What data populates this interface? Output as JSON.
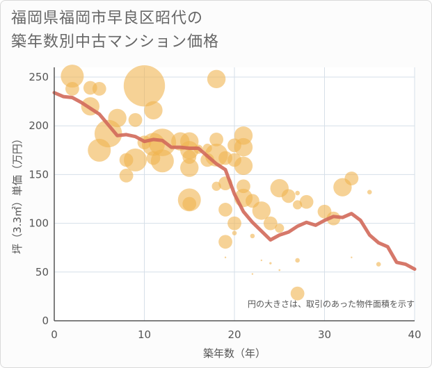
{
  "title_line1": "福岡県福岡市早良区昭代の",
  "title_line2": "築年数別中古マンション価格",
  "chart_data": {
    "type": "scatter",
    "title": "福岡県福岡市早良区昭代の築年数別中古マンション価格",
    "xlabel": "築年数（年）",
    "ylabel": "坪（3.3㎡）単価（万円）",
    "xlim": [
      0,
      40
    ],
    "ylim": [
      0,
      260
    ],
    "xticks": [
      0,
      10,
      20,
      30,
      40
    ],
    "yticks": [
      0,
      50,
      100,
      150,
      200,
      250
    ],
    "grid": true,
    "note": "円の大きさは、取引のあった物件面積を示す",
    "colors": {
      "bubble": "#f0b450",
      "line": "#d2695a"
    },
    "series": [
      {
        "type": "bubble",
        "points": [
          {
            "x": 2,
            "y": 251,
            "s": 5
          },
          {
            "x": 2,
            "y": 238,
            "s": 3
          },
          {
            "x": 4,
            "y": 239,
            "s": 3
          },
          {
            "x": 5,
            "y": 238,
            "s": 3
          },
          {
            "x": 4,
            "y": 220,
            "s": 4
          },
          {
            "x": 7,
            "y": 208,
            "s": 4
          },
          {
            "x": 9,
            "y": 206,
            "s": 3
          },
          {
            "x": 10,
            "y": 241,
            "s": 9
          },
          {
            "x": 11,
            "y": 216,
            "s": 4
          },
          {
            "x": 6,
            "y": 192,
            "s": 6
          },
          {
            "x": 5,
            "y": 175,
            "s": 5
          },
          {
            "x": 8,
            "y": 165,
            "s": 3
          },
          {
            "x": 8,
            "y": 149,
            "s": 3
          },
          {
            "x": 9,
            "y": 165,
            "s": 5
          },
          {
            "x": 10,
            "y": 183,
            "s": 3
          },
          {
            "x": 11,
            "y": 181,
            "s": 5
          },
          {
            "x": 12,
            "y": 183,
            "s": 6
          },
          {
            "x": 11,
            "y": 167,
            "s": 3
          },
          {
            "x": 12,
            "y": 164,
            "s": 5
          },
          {
            "x": 14,
            "y": 184,
            "s": 4
          },
          {
            "x": 15,
            "y": 184,
            "s": 4
          },
          {
            "x": 15,
            "y": 175,
            "s": 4
          },
          {
            "x": 15,
            "y": 168,
            "s": 3
          },
          {
            "x": 16,
            "y": 176,
            "s": 2
          },
          {
            "x": 17,
            "y": 177,
            "s": 2
          },
          {
            "x": 18,
            "y": 186,
            "s": 3
          },
          {
            "x": 18,
            "y": 248,
            "s": 4
          },
          {
            "x": 15,
            "y": 157,
            "s": 4
          },
          {
            "x": 15,
            "y": 124,
            "s": 5
          },
          {
            "x": 15,
            "y": 120,
            "s": 3
          },
          {
            "x": 17,
            "y": 165,
            "s": 3
          },
          {
            "x": 18,
            "y": 170,
            "s": 5
          },
          {
            "x": 19,
            "y": 167,
            "s": 3
          },
          {
            "x": 20,
            "y": 180,
            "s": 3
          },
          {
            "x": 20,
            "y": 165,
            "s": 3
          },
          {
            "x": 21,
            "y": 190,
            "s": 4
          },
          {
            "x": 21,
            "y": 178,
            "s": 4
          },
          {
            "x": 21,
            "y": 159,
            "s": 4
          },
          {
            "x": 18,
            "y": 138,
            "s": 2
          },
          {
            "x": 19,
            "y": 141,
            "s": 3
          },
          {
            "x": 21,
            "y": 138,
            "s": 3
          },
          {
            "x": 21,
            "y": 126,
            "s": 4
          },
          {
            "x": 22,
            "y": 123,
            "s": 3
          },
          {
            "x": 19,
            "y": 114,
            "s": 3
          },
          {
            "x": 23,
            "y": 113,
            "s": 4
          },
          {
            "x": 20,
            "y": 100,
            "s": 3
          },
          {
            "x": 24,
            "y": 100,
            "s": 3
          },
          {
            "x": 19,
            "y": 81,
            "s": 3
          },
          {
            "x": 20,
            "y": 90,
            "s": 1
          },
          {
            "x": 22,
            "y": 87,
            "s": 1
          },
          {
            "x": 25,
            "y": 136,
            "s": 4
          },
          {
            "x": 26,
            "y": 128,
            "s": 3
          },
          {
            "x": 27,
            "y": 131,
            "s": 1
          },
          {
            "x": 28,
            "y": 122,
            "s": 3
          },
          {
            "x": 27,
            "y": 119,
            "s": 2
          },
          {
            "x": 25,
            "y": 95,
            "s": 2
          },
          {
            "x": 27,
            "y": 62,
            "s": 1
          },
          {
            "x": 30,
            "y": 112,
            "s": 3
          },
          {
            "x": 31,
            "y": 105,
            "s": 3
          },
          {
            "x": 32,
            "y": 137,
            "s": 4
          },
          {
            "x": 33,
            "y": 146,
            "s": 3
          },
          {
            "x": 35,
            "y": 132,
            "s": 1
          },
          {
            "x": 36,
            "y": 58,
            "s": 1
          },
          {
            "x": 27,
            "y": 28,
            "s": 3
          },
          {
            "x": 19,
            "y": 65,
            "s": 0.3
          },
          {
            "x": 23,
            "y": 62,
            "s": 0.3
          },
          {
            "x": 24,
            "y": 59,
            "s": 0.5
          },
          {
            "x": 25,
            "y": 52,
            "s": 0.4
          },
          {
            "x": 22,
            "y": 48,
            "s": 0.3
          },
          {
            "x": 33,
            "y": 65,
            "s": 0.3
          }
        ]
      },
      {
        "type": "line",
        "points": [
          {
            "x": 0,
            "y": 234
          },
          {
            "x": 1,
            "y": 230
          },
          {
            "x": 2,
            "y": 229
          },
          {
            "x": 3,
            "y": 224
          },
          {
            "x": 4,
            "y": 218
          },
          {
            "x": 5,
            "y": 212
          },
          {
            "x": 6,
            "y": 201
          },
          {
            "x": 7,
            "y": 190
          },
          {
            "x": 8,
            "y": 191
          },
          {
            "x": 9,
            "y": 189
          },
          {
            "x": 10,
            "y": 184
          },
          {
            "x": 11,
            "y": 186
          },
          {
            "x": 12,
            "y": 185
          },
          {
            "x": 13,
            "y": 178
          },
          {
            "x": 14,
            "y": 178
          },
          {
            "x": 15,
            "y": 177
          },
          {
            "x": 16,
            "y": 177
          },
          {
            "x": 17,
            "y": 169
          },
          {
            "x": 18,
            "y": 161
          },
          {
            "x": 19,
            "y": 155
          },
          {
            "x": 20,
            "y": 130
          },
          {
            "x": 21,
            "y": 112
          },
          {
            "x": 22,
            "y": 101
          },
          {
            "x": 23,
            "y": 92
          },
          {
            "x": 24,
            "y": 83
          },
          {
            "x": 25,
            "y": 88
          },
          {
            "x": 26,
            "y": 91
          },
          {
            "x": 27,
            "y": 97
          },
          {
            "x": 28,
            "y": 101
          },
          {
            "x": 29,
            "y": 98
          },
          {
            "x": 30,
            "y": 103
          },
          {
            "x": 31,
            "y": 107
          },
          {
            "x": 32,
            "y": 106
          },
          {
            "x": 33,
            "y": 110
          },
          {
            "x": 34,
            "y": 103
          },
          {
            "x": 35,
            "y": 88
          },
          {
            "x": 36,
            "y": 80
          },
          {
            "x": 37,
            "y": 76
          },
          {
            "x": 38,
            "y": 60
          },
          {
            "x": 39,
            "y": 58
          },
          {
            "x": 40,
            "y": 53
          }
        ]
      }
    ]
  }
}
